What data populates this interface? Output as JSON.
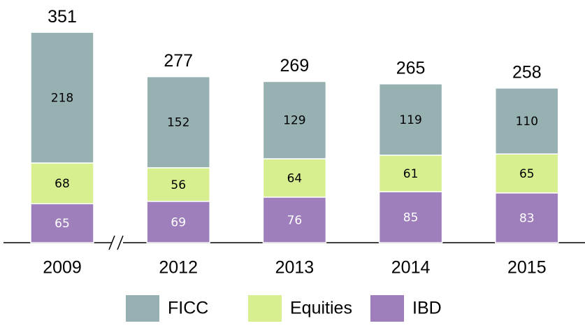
{
  "chart_data": {
    "type": "stacked_bar",
    "categories": [
      "2009",
      "2012",
      "2013",
      "2014",
      "2015"
    ],
    "series": [
      {
        "name": "FICC",
        "color": "#97b1b3",
        "values": [
          218,
          152,
          129,
          119,
          110
        ]
      },
      {
        "name": "Equities",
        "color": "#d7ef8e",
        "values": [
          68,
          56,
          64,
          61,
          65
        ]
      },
      {
        "name": "IBD",
        "color": "#9e7fbb",
        "values": [
          65,
          69,
          76,
          85,
          83
        ]
      }
    ],
    "totals": [
      351,
      277,
      269,
      265,
      258
    ]
  }
}
